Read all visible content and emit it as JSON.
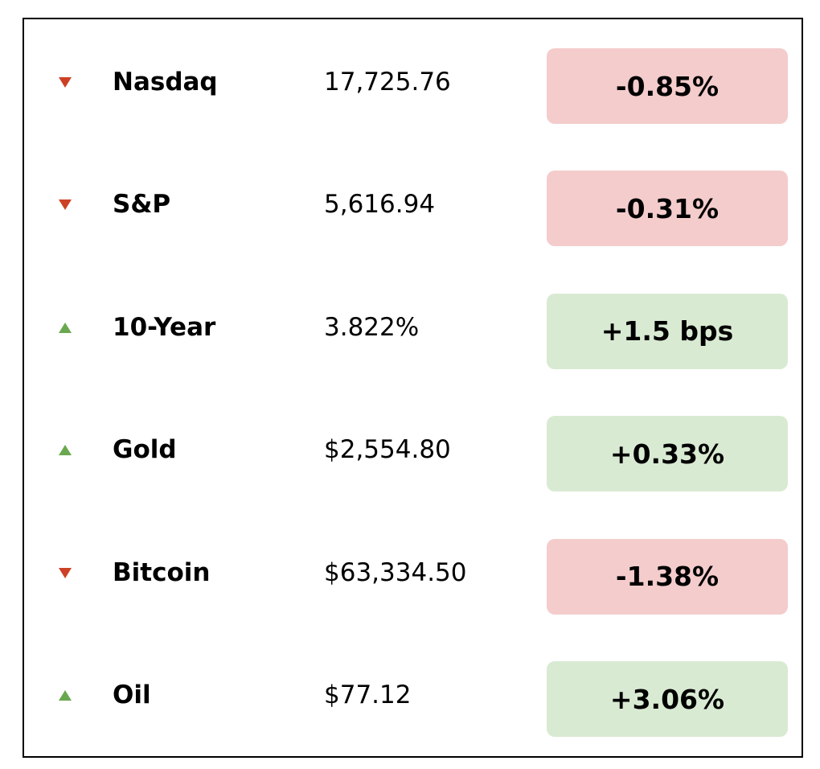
{
  "rows": [
    {
      "name": "Nasdaq",
      "value": "17,725.76",
      "change": "-0.85%",
      "direction": "down"
    },
    {
      "name": "S&P",
      "value": "5,616.94",
      "change": "-0.31%",
      "direction": "down"
    },
    {
      "name": "10-Year",
      "value": "3.822%",
      "change": "+1.5 bps",
      "direction": "up"
    },
    {
      "name": "Gold",
      "value": "$2,554.80",
      "change": "+0.33%",
      "direction": "up"
    },
    {
      "name": "Bitcoin",
      "value": "$63,334.50",
      "change": "-1.38%",
      "direction": "down"
    },
    {
      "name": "Oil",
      "value": "$77.12",
      "change": "+3.06%",
      "direction": "up"
    }
  ],
  "styles": {
    "down": {
      "arrow": "#cc4125",
      "pill": "#f4cccc"
    },
    "up": {
      "arrow": "#6aa84f",
      "pill": "#d9ead3"
    }
  }
}
